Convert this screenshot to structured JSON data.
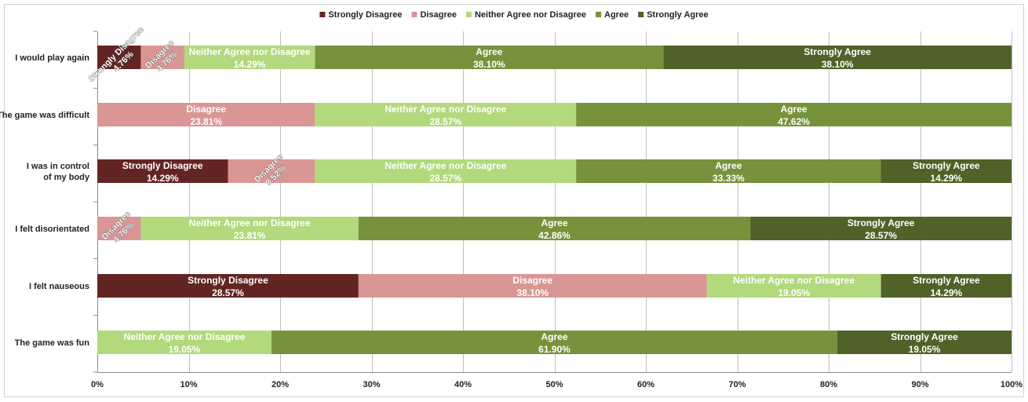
{
  "chart_data": {
    "type": "bar",
    "orientation": "horizontal",
    "stacked": true,
    "normalized": true,
    "categories": [
      "I would play again",
      "The game was difficult",
      [
        "I was in control",
        "of my body"
      ],
      "I felt disorientated",
      "I felt nauseous",
      "The game was fun"
    ],
    "series": [
      {
        "name": "Strongly Disagree",
        "color": "#632523",
        "values": [
          4.76,
          0,
          14.29,
          0,
          28.57,
          0
        ]
      },
      {
        "name": "Disagree",
        "color": "#d99694",
        "values": [
          4.76,
          23.81,
          9.52,
          4.76,
          38.1,
          0
        ]
      },
      {
        "name": "Neither Agree nor Disagree",
        "color": "#b2d97c",
        "values": [
          14.29,
          28.57,
          28.57,
          23.81,
          19.05,
          19.05
        ]
      },
      {
        "name": "Agree",
        "color": "#76933c",
        "values": [
          38.1,
          47.62,
          33.33,
          42.86,
          0,
          61.9
        ]
      },
      {
        "name": "Strongly Agree",
        "color": "#4f6228",
        "values": [
          38.1,
          0,
          14.29,
          28.57,
          14.29,
          19.05
        ]
      }
    ],
    "xlim": [
      0,
      100
    ],
    "xticks": [
      "0%",
      "10%",
      "20%",
      "30%",
      "40%",
      "50%",
      "60%",
      "70%",
      "80%",
      "90%",
      "100%"
    ],
    "value_suffix": "%",
    "legend_position": "top",
    "grid": "vertical",
    "title": "",
    "xlabel": "",
    "ylabel": ""
  }
}
